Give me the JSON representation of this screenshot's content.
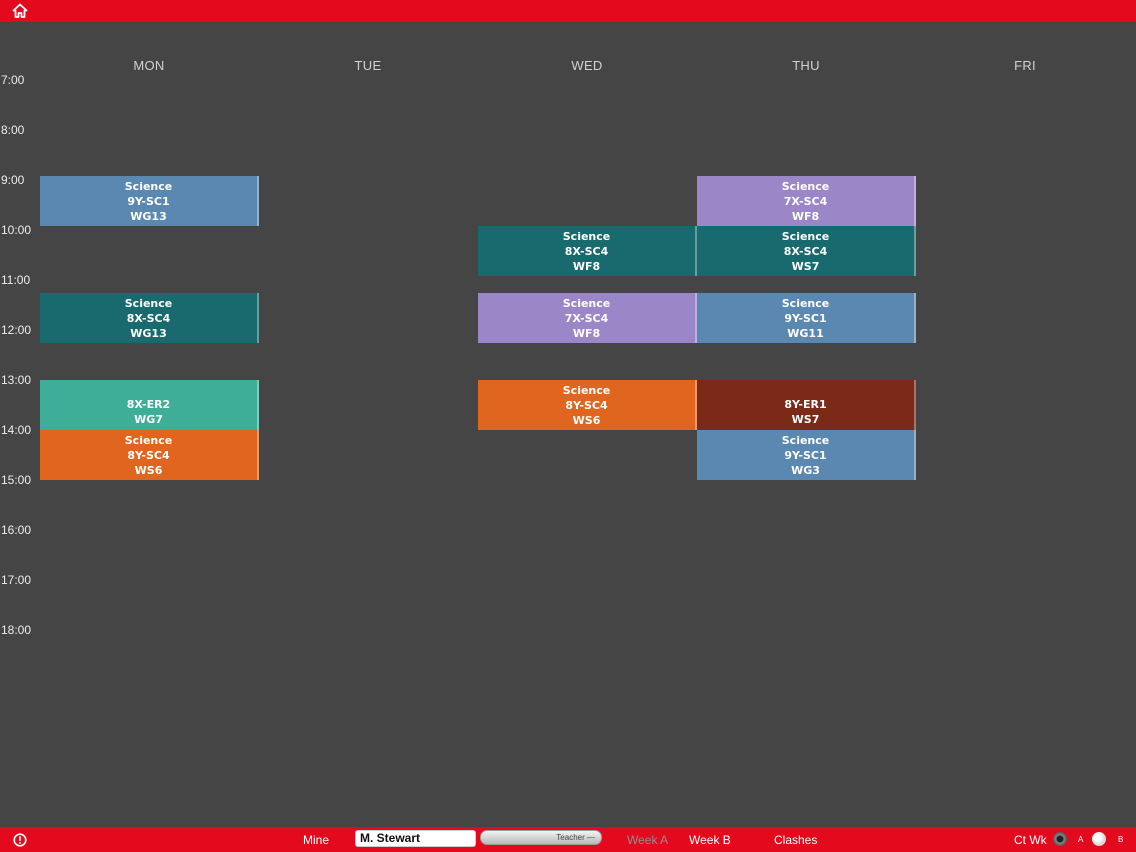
{
  "days": [
    "MON",
    "TUE",
    "WED",
    "THU",
    "FRI"
  ],
  "times": [
    "7:00",
    "8:00",
    "9:00",
    "10:00",
    "11:00",
    "12:00",
    "13:00",
    "14:00",
    "15:00",
    "16:00",
    "17:00",
    "18:00"
  ],
  "lessons": {
    "mon_1": {
      "subject": "Science",
      "cls": "9Y-SC1",
      "room": "WG13"
    },
    "mon_2": {
      "subject": "Science",
      "cls": "8X-SC4",
      "room": "WG13"
    },
    "mon_3": {
      "subject": "",
      "cls": "8X-ER2",
      "room": "WG7"
    },
    "mon_4": {
      "subject": "Science",
      "cls": "8Y-SC4",
      "room": "WS6"
    },
    "wed_1": {
      "subject": "Science",
      "cls": "8X-SC4",
      "room": "WF8"
    },
    "wed_2": {
      "subject": "Science",
      "cls": "7X-SC4",
      "room": "WF8"
    },
    "wed_3": {
      "subject": "Science",
      "cls": "8Y-SC4",
      "room": "WS6"
    },
    "thu_1": {
      "subject": "Science",
      "cls": "7X-SC4",
      "room": "WF8"
    },
    "thu_2": {
      "subject": "Science",
      "cls": "8X-SC4",
      "room": "WS7"
    },
    "thu_3": {
      "subject": "Science",
      "cls": "9Y-SC1",
      "room": "WG11"
    },
    "thu_4": {
      "subject": "",
      "cls": "8Y-ER1",
      "room": "WS7"
    },
    "thu_5": {
      "subject": "Science",
      "cls": "9Y-SC1",
      "room": "WG3"
    }
  },
  "colors": {
    "blue": "#5b88b1",
    "teal": "#186a6e",
    "purple": "#9b86c8",
    "mint": "#3fae98",
    "orange": "#e0651f",
    "maroon": "#7b2a17",
    "bar": "#e30a1e"
  },
  "bottom": {
    "mine": "Mine",
    "teacher_value": "M. Stewart",
    "type_select": "Teacher",
    "week_a": "Week A",
    "week_b": "Week B",
    "clashes": "Clashes",
    "ct_wk": "Ct Wk",
    "radio_a": "A",
    "radio_b": "B"
  },
  "icons": {
    "home": "home-icon",
    "info": "info-icon"
  }
}
